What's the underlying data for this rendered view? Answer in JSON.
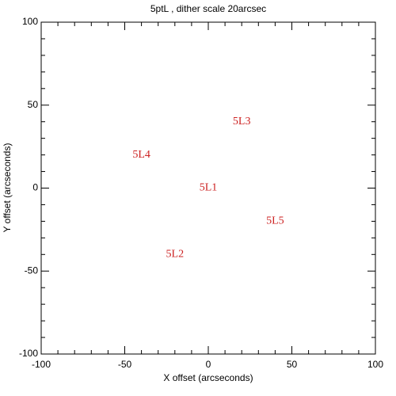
{
  "chart_data": {
    "type": "scatter",
    "title": "5ptL , dither scale 20arcsec",
    "xlabel": "X offset (arcseconds)",
    "ylabel": "Y offset (arcseconds)",
    "x": [
      0,
      -20,
      20,
      -40,
      40
    ],
    "y": [
      0,
      -40,
      40,
      20,
      -20
    ],
    "labels": [
      "5L1",
      "5L2",
      "5L3",
      "5L4",
      "5L5"
    ],
    "color": "#cc2020",
    "xlim": [
      -100,
      100
    ],
    "ylim": [
      -100,
      100
    ],
    "xticks": [
      -100,
      -50,
      0,
      50,
      100
    ],
    "yticks": [
      -100,
      -50,
      0,
      50,
      100
    ]
  }
}
